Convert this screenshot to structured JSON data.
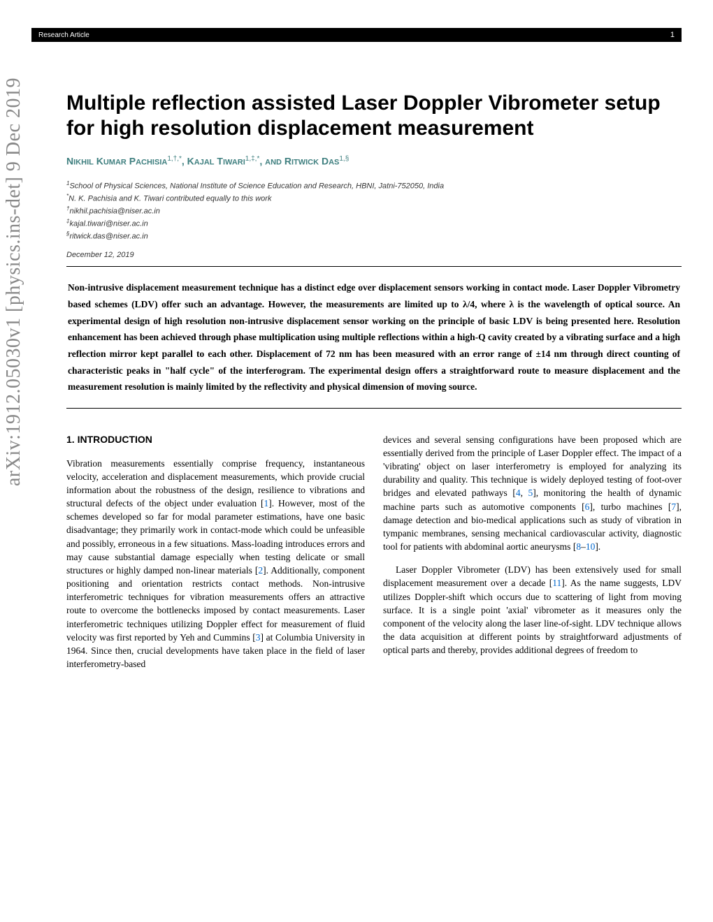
{
  "header": {
    "label": "Research Article",
    "page": "1"
  },
  "arxiv": "arXiv:1912.05030v1  [physics.ins-det]  9 Dec 2019",
  "title": "Multiple reflection assisted Laser Doppler Vibrometer setup for high resolution displacement measurement",
  "authors_html": "N<span style='font-size:11px'>IKHIL</span> K<span style='font-size:11px'>UMAR</span> P<span style='font-size:11px'>ACHISIA</span><span class='sup'>1,†,*</span>, K<span style='font-size:11px'>AJAL</span> T<span style='font-size:11px'>IWARI</span><span class='sup'>1,‡,*</span>, <span style='font-size:11px'>AND</span> R<span style='font-size:11px'>ITWICK</span> D<span style='font-size:11px'>AS</span><span class='sup'>1,§</span>",
  "affiliations": [
    {
      "sup": "1",
      "text": "School of Physical Sciences, National Institute of Science Education and Research, HBNI, Jatni-752050, India"
    },
    {
      "sup": "*",
      "text": "N. K. Pachisia and K. Tiwari contributed equally to this work"
    },
    {
      "sup": "†",
      "text": "nikhil.pachisia@niser.ac.in"
    },
    {
      "sup": "‡",
      "text": "kajal.tiwari@niser.ac.in"
    },
    {
      "sup": "§",
      "text": "ritwick.das@niser.ac.in"
    }
  ],
  "date": "December 12, 2019",
  "abstract": "Non-intrusive displacement measurement technique has a distinct edge over displacement sensors working in contact mode. Laser Doppler Vibrometry based schemes (LDV) offer such an advantage. However, the measurements are limited up to λ/4, where λ is the wavelength of optical source. An experimental design of high resolution non-intrusive displacement sensor working on the principle of basic LDV is being presented here. Resolution enhancement has been achieved through phase multiplication using multiple reflections within a high-Q cavity created by a vibrating surface and a high reflection mirror kept parallel to each other. Displacement of 72 nm has been measured with an error range of ±14 nm through direct counting of characteristic peaks in \"half cycle\" of the interferogram. The experimental design offers a straightforward route to measure displacement and the measurement resolution is mainly limited by the reflectivity and physical dimension of moving source.",
  "section1": {
    "title": "1. INTRODUCTION",
    "col1_p1": "Vibration measurements essentially comprise frequency, instantaneous velocity, acceleration and displacement measurements, which provide crucial information about the robustness of the design, resilience to vibrations and structural defects of the object under evaluation [<span class='cite'>1</span>]. However, most of the schemes developed so far for modal parameter estimations, have one basic disadvantage; they primarily work in contact-mode which could be unfeasible and possibly, erroneous in a few situations. Mass-loading introduces errors and may cause substantial damage especially when testing delicate or small structures or highly damped non-linear materials [<span class='cite'>2</span>]. Additionally, component positioning and orientation restricts contact methods. Non-intrusive interferometric techniques for vibration measurements offers an attractive route to overcome the bottlenecks imposed by contact measurements. Laser interferometric techniques utilizing Doppler effect for measurement of fluid velocity was first reported by Yeh and Cummins [<span class='cite'>3</span>] at Columbia University in 1964. Since then, crucial developments have taken place in the field of laser interferometry-based",
    "col2_p1": "devices and several sensing configurations have been proposed which are essentially derived from the principle of Laser Doppler effect. The impact of a 'vibrating' object on laser interferometry is employed for analyzing its durability and quality. This technique is widely deployed testing of foot-over bridges and elevated pathways [<span class='cite'>4</span>, <span class='cite'>5</span>], monitoring the health of dynamic machine parts such as automotive components [<span class='cite'>6</span>], turbo machines [<span class='cite'>7</span>], damage detection and bio-medical applications such as study of vibration in tympanic membranes, sensing mechanical cardiovascular activity, diagnostic tool for patients with abdominal aortic aneurysms [<span class='cite'>8</span>–<span class='cite'>10</span>].",
    "col2_p2": "Laser Doppler Vibrometer (LDV) has been extensively used for small displacement measurement over a decade [<span class='cite'>11</span>]. As the name suggests, LDV utilizes Doppler-shift which occurs due to scattering of light from moving surface. It is a single point 'axial' vibrometer as it measures only the component of the velocity along the laser line-of-sight. LDV technique allows the data acquisition at different points by straightforward adjustments of optical parts and thereby, provides additional degrees of freedom to"
  },
  "colors": {
    "author_color": "#408080",
    "cite_color": "#0066cc",
    "arxiv_color": "#888888"
  }
}
